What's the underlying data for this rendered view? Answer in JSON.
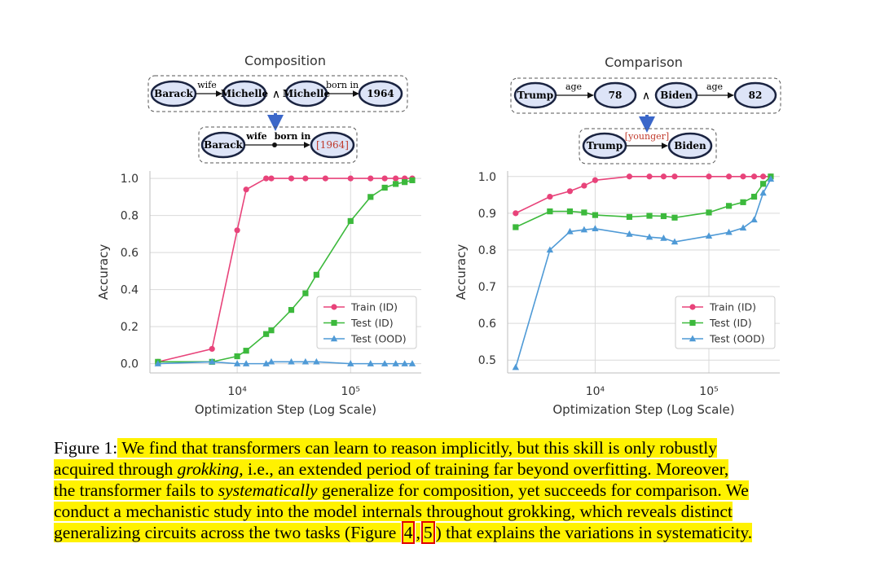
{
  "figure": {
    "left_panel": {
      "title": "Composition",
      "top_graph": {
        "nodes": [
          "Barack",
          "Michelle",
          "Michelle",
          "1964"
        ],
        "edges": [
          "wife",
          "born in"
        ],
        "connector": "∧"
      },
      "bottom_graph": {
        "nodes": [
          "Barack",
          "[1964]"
        ],
        "edges": [
          "wife",
          "born in"
        ]
      }
    },
    "right_panel": {
      "title": "Comparison",
      "top_graph": {
        "nodes": [
          "Trump",
          "78",
          "Biden",
          "82"
        ],
        "edges": [
          "age",
          "age"
        ],
        "connector": "∧"
      },
      "bottom_graph": {
        "nodes": [
          "Trump",
          "Biden"
        ],
        "edges": [
          "[younger]"
        ]
      }
    }
  },
  "colors": {
    "train": "#e8437a",
    "test_id": "#3cb93c",
    "test_ood": "#4f9ad6",
    "node_fill": "#dde4f7",
    "node_stroke": "#1a2340",
    "highlight": "#fff200",
    "red_label": "#c0392b",
    "arrow_blue": "#3b67c9"
  },
  "chart_data": [
    {
      "type": "line",
      "xlabel": "Optimization Step (Log Scale)",
      "ylabel": "Accuracy",
      "xscale": "log",
      "xlim": [
        1700,
        420000
      ],
      "ylim": [
        -0.05,
        1.04
      ],
      "yticks": [
        0.0,
        0.2,
        0.4,
        0.6,
        0.8,
        1.0
      ],
      "ytick_labels": [
        "0.0",
        "0.2",
        "0.4",
        "0.6",
        "0.8",
        "1.0"
      ],
      "xticks": [
        10000,
        100000
      ],
      "xtick_labels": [
        "10⁴",
        "10⁵"
      ],
      "grid": true,
      "legend": "right",
      "series": [
        {
          "name": "Train (ID)",
          "marker": "circle",
          "x": [
            2000,
            6000,
            10000,
            12000,
            18000,
            20000,
            30000,
            40000,
            60000,
            100000,
            150000,
            200000,
            250000,
            300000,
            350000
          ],
          "y": [
            0.01,
            0.08,
            0.72,
            0.94,
            1.0,
            1.0,
            1.0,
            1.0,
            1.0,
            1.0,
            1.0,
            1.0,
            1.0,
            1.0,
            1.0
          ]
        },
        {
          "name": "Test (ID)",
          "marker": "square",
          "x": [
            2000,
            6000,
            10000,
            12000,
            18000,
            20000,
            30000,
            40000,
            50000,
            100000,
            150000,
            200000,
            250000,
            300000,
            350000
          ],
          "y": [
            0.01,
            0.01,
            0.04,
            0.07,
            0.16,
            0.18,
            0.29,
            0.38,
            0.48,
            0.77,
            0.9,
            0.95,
            0.97,
            0.98,
            0.99
          ]
        },
        {
          "name": "Test (OOD)",
          "marker": "triangle",
          "x": [
            2000,
            6000,
            10000,
            12000,
            18000,
            20000,
            30000,
            40000,
            50000,
            100000,
            150000,
            200000,
            250000,
            300000,
            350000
          ],
          "y": [
            0.0,
            0.01,
            0.0,
            0.0,
            0.0,
            0.01,
            0.01,
            0.01,
            0.01,
            0.0,
            0.0,
            0.0,
            0.0,
            0.0,
            0.0
          ]
        }
      ]
    },
    {
      "type": "line",
      "xlabel": "Optimization Step (Log Scale)",
      "ylabel": "Accuracy",
      "xscale": "log",
      "xlim": [
        1700,
        420000
      ],
      "ylim": [
        0.465,
        1.015
      ],
      "yticks": [
        0.5,
        0.6,
        0.7,
        0.8,
        0.9,
        1.0
      ],
      "ytick_labels": [
        "0.5",
        "0.6",
        "0.7",
        "0.8",
        "0.9",
        "1.0"
      ],
      "xticks": [
        10000,
        100000
      ],
      "xtick_labels": [
        "10⁴",
        "10⁵"
      ],
      "grid": true,
      "legend": "right",
      "series": [
        {
          "name": "Train (ID)",
          "marker": "circle",
          "x": [
            2000,
            4000,
            6000,
            8000,
            10000,
            20000,
            30000,
            40000,
            50000,
            100000,
            150000,
            200000,
            250000,
            300000,
            350000
          ],
          "y": [
            0.9,
            0.945,
            0.96,
            0.975,
            0.99,
            1.0,
            1.0,
            1.0,
            1.0,
            1.0,
            1.0,
            1.0,
            1.0,
            1.0,
            1.0
          ]
        },
        {
          "name": "Test (ID)",
          "marker": "square",
          "x": [
            2000,
            4000,
            6000,
            8000,
            10000,
            20000,
            30000,
            40000,
            50000,
            100000,
            150000,
            200000,
            250000,
            300000,
            350000
          ],
          "y": [
            0.862,
            0.905,
            0.905,
            0.902,
            0.895,
            0.89,
            0.893,
            0.892,
            0.888,
            0.902,
            0.92,
            0.93,
            0.945,
            0.98,
            1.0
          ]
        },
        {
          "name": "Test (OOD)",
          "marker": "triangle",
          "x": [
            2000,
            4000,
            6000,
            8000,
            10000,
            20000,
            30000,
            40000,
            50000,
            100000,
            150000,
            200000,
            250000,
            300000,
            350000
          ],
          "y": [
            0.48,
            0.8,
            0.85,
            0.855,
            0.858,
            0.843,
            0.835,
            0.832,
            0.822,
            0.838,
            0.848,
            0.86,
            0.882,
            0.955,
            0.993
          ]
        }
      ]
    }
  ],
  "caption": {
    "label": "Figure 1:",
    "lines": [
      " We find that transformers can learn to reason implicitly, but this skill is only robustly",
      [
        "acquired through ",
        "grokking",
        ", i.e., an extended period of training far beyond overfitting. Moreover,"
      ],
      [
        "the transformer fails to ",
        "systematically",
        " generalize for composition, yet succeeds for comparison. We"
      ],
      "conduct a mechanistic study into the model internals throughout grokking, which reveals distinct",
      [
        "generalizing circuits across the two tasks (Figure ",
        "4",
        ",",
        "5",
        ") that explains the variations in systematicity."
      ]
    ]
  }
}
